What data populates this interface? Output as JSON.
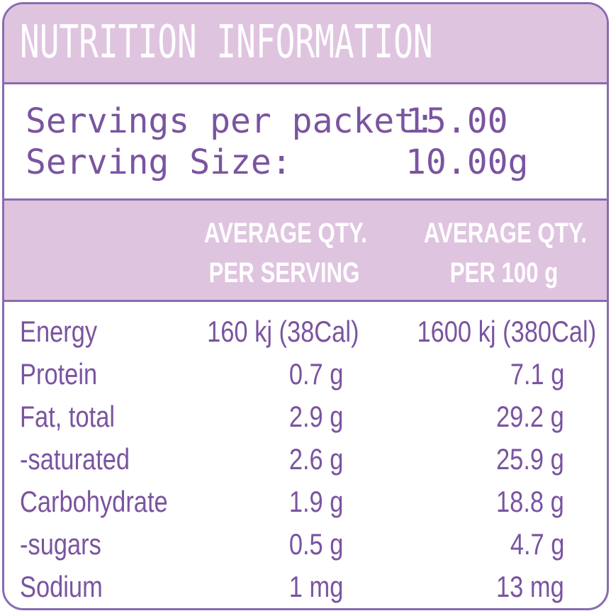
{
  "title": "NUTRITION INFORMATION",
  "servings": {
    "per_packet_label": "Servings per packet:",
    "per_packet_value": "15.00",
    "size_label": "Serving Size:",
    "size_value": "10.00g"
  },
  "headers": {
    "col1_line1": "AVERAGE QTY.",
    "col1_line2": "PER SERVING",
    "col2_line1": "AVERAGE QTY.",
    "col2_line2": "PER 100 g"
  },
  "rows": [
    {
      "label": "Energy",
      "per_serving": "160 kj (38Cal)",
      "per_100g": "1600 kj (380Cal)"
    },
    {
      "label": "Protein",
      "per_serving": "0.7 g",
      "per_100g": "7.1 g"
    },
    {
      "label": "Fat, total",
      "per_serving": "2.9 g",
      "per_100g": "29.2 g"
    },
    {
      "label": "-saturated",
      "per_serving": "2.6 g",
      "per_100g": "25.9 g"
    },
    {
      "label": "Carbohydrate",
      "per_serving": "1.9 g",
      "per_100g": "18.8 g"
    },
    {
      "label": "-sugars",
      "per_serving": "0.5 g",
      "per_100g": "4.7 g"
    },
    {
      "label": "Sodium",
      "per_serving": "1 mg",
      "per_100g": "13 mg"
    }
  ],
  "colors": {
    "border": "#8a6bb0",
    "band": "#dfc4e0",
    "text": "#7a54a0",
    "header_text": "#ffffff"
  }
}
